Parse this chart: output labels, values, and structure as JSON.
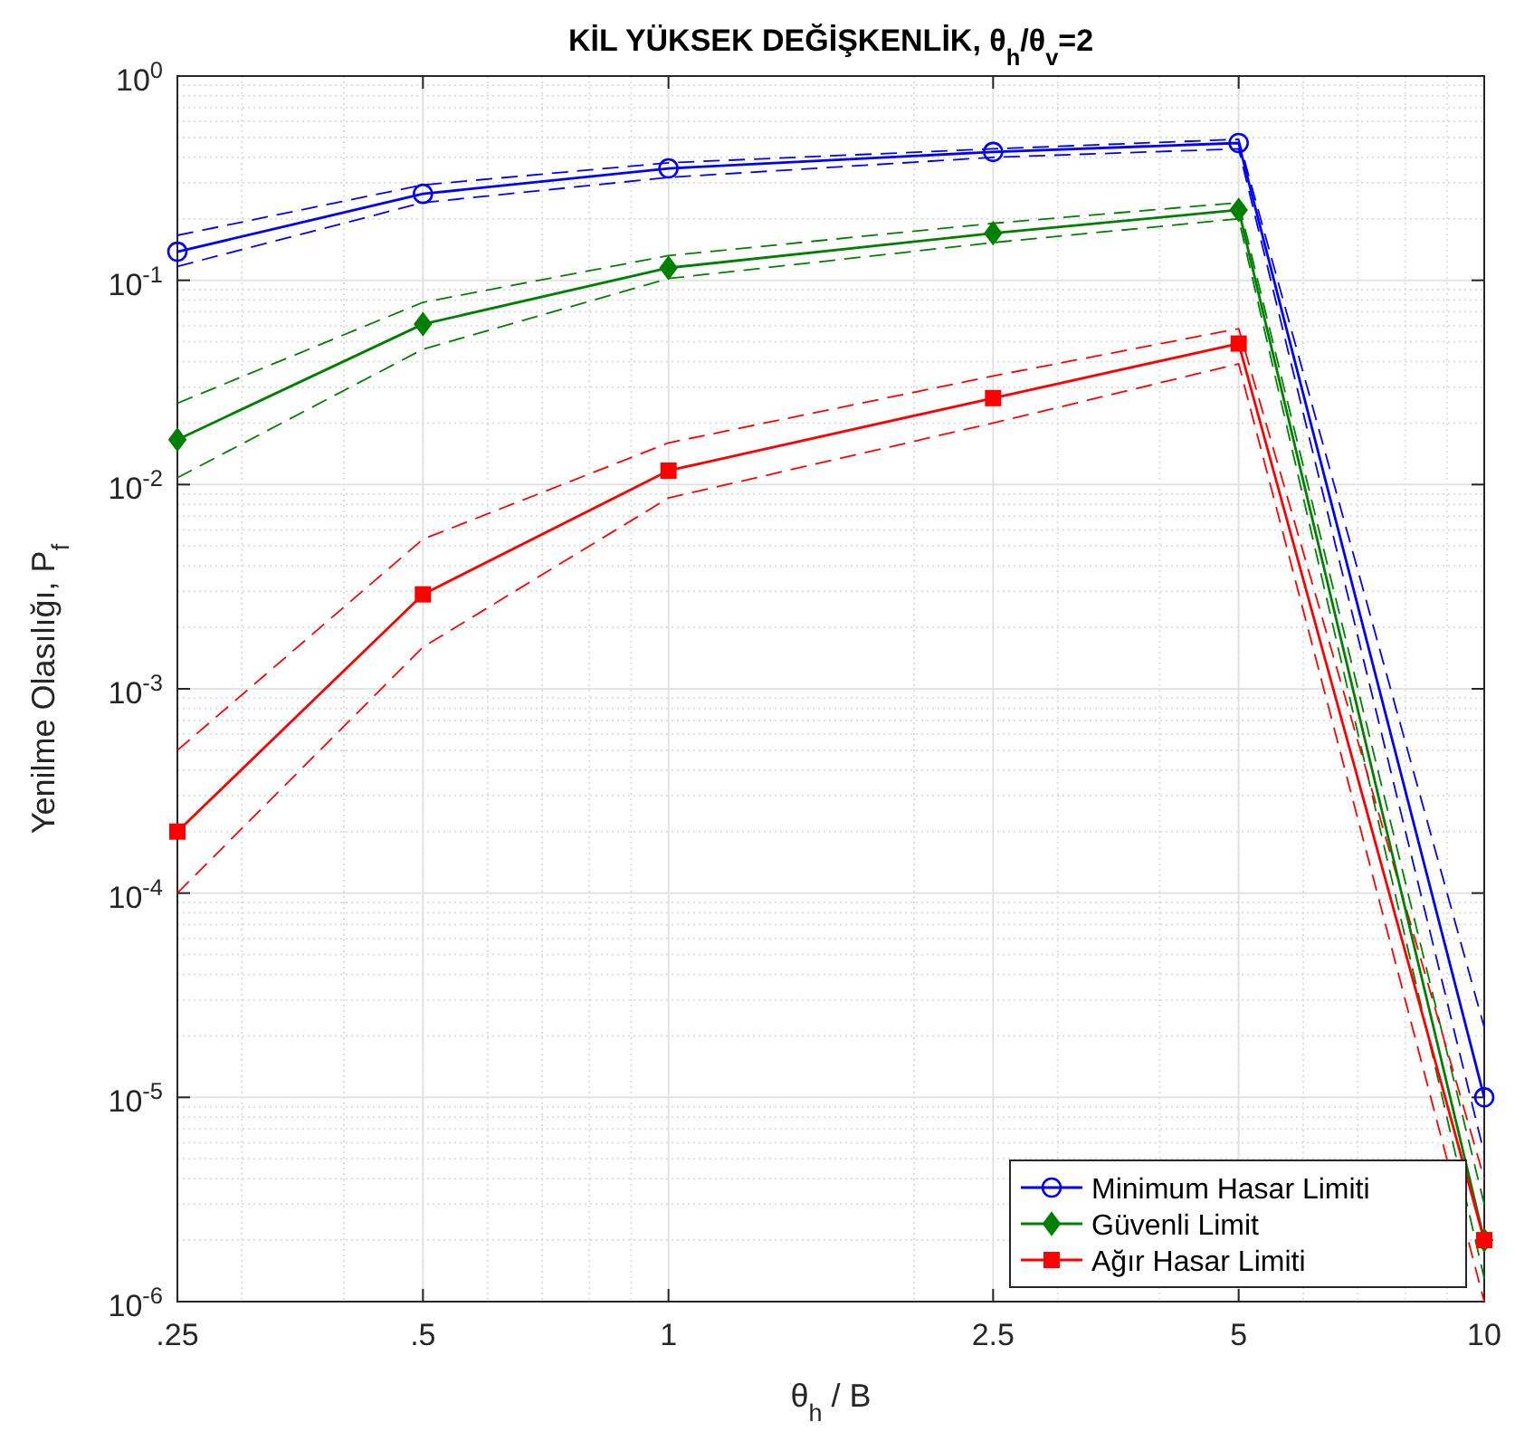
{
  "chart_data": {
    "type": "line",
    "title": "KİL YÜKSEK DEĞİŞKENLİK, θ$_{h}$/θ$_{v}$=2",
    "xlabel": "θ$_{h}$ / B",
    "ylabel": "Yenilme Olasılığı, P$_{f}$",
    "x": [
      0.25,
      0.5,
      1,
      2.5,
      5,
      10
    ],
    "log": "xy",
    "xlim": [
      0.25,
      10
    ],
    "ylim": [
      1e-06,
      1
    ],
    "xticks": [
      {
        "value": 0.25,
        "label": ".25"
      },
      {
        "value": 0.5,
        "label": ".5"
      },
      1,
      2.5,
      5,
      10
    ],
    "yticks": [
      {
        "value": 1e-06,
        "label": "10$^{-6}$"
      },
      {
        "value": 1e-05,
        "label": "10$^{-5}$"
      },
      {
        "value": 0.0001,
        "label": "10$^{-4}$"
      },
      {
        "value": 0.001,
        "label": "10$^{-3}$"
      },
      {
        "value": 0.01,
        "label": "10$^{-2}$"
      },
      {
        "value": 0.1,
        "label": "10$^{-1}$"
      },
      {
        "value": 1,
        "label": "10$^{0}$"
      }
    ],
    "grid": true,
    "legend": "bottom right",
    "line_style": "solid",
    "series": [
      {
        "color": "#0000ff",
        "marker": "none",
        "line_style": "dashed",
        "values": [
          0.166,
          0.293,
          0.376,
          0.44,
          0.49,
          2.2e-05
        ]
      },
      {
        "color": "#0000ff",
        "marker": "none",
        "line_style": "dashed",
        "values": [
          0.117,
          0.24,
          0.319,
          0.4,
          0.44,
          5.3e-06
        ]
      },
      {
        "color": "#008000",
        "marker": "none",
        "line_style": "dashed",
        "values": [
          0.025,
          0.078,
          0.132,
          0.19,
          0.24,
          3e-06
        ]
      },
      {
        "color": "#008000",
        "marker": "none",
        "line_style": "dashed",
        "values": [
          0.0108,
          0.046,
          0.102,
          0.153,
          0.2,
          1.3e-06
        ]
      },
      {
        "color": "#ff0000",
        "marker": "none",
        "line_style": "dashed",
        "values": [
          0.0005,
          0.0054,
          0.016,
          0.034,
          0.058,
          4e-06
        ]
      },
      {
        "color": "#ff0000",
        "marker": "none",
        "line_style": "dashed",
        "values": [
          0.0001,
          0.0016,
          0.0086,
          0.02,
          0.039,
          1e-06
        ]
      },
      {
        "name": "Minimum Hasar Limiti",
        "color": "#0000ff",
        "marker": "circle",
        "values": [
          0.138,
          0.265,
          0.353,
          0.425,
          0.47,
          1e-05
        ]
      },
      {
        "name": "Güvenli Limit",
        "color": "#008000",
        "marker": "diamond",
        "values": [
          0.0166,
          0.061,
          0.115,
          0.17,
          0.221,
          2e-06
        ]
      },
      {
        "name": "Ağır Hasar Limiti",
        "color": "#ff0000",
        "marker": "square",
        "values": [
          0.0002,
          0.0029,
          0.0117,
          0.0265,
          0.049,
          2e-06
        ]
      }
    ]
  }
}
